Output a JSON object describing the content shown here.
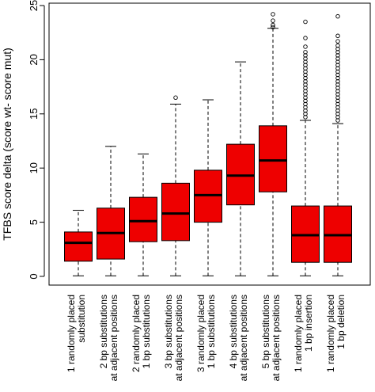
{
  "chart_data": {
    "type": "boxplot",
    "title": "",
    "ylabel": "TFBS score delta (score wt- score mut)",
    "xlabel": "",
    "ylim": [
      0,
      25
    ],
    "yticks": [
      0,
      5,
      10,
      15,
      20,
      25
    ],
    "grid": false,
    "legend": "none",
    "colors": {
      "box_fill": "#ee0000",
      "box_stroke": "#000000",
      "median": "#000000",
      "whisker": "#000000"
    },
    "categories": [
      [
        "1 randomly placed",
        "substitution"
      ],
      [
        "2 bp substitutions",
        "at adjacent positions"
      ],
      [
        "2 randomly placed",
        "1 bp substitutions"
      ],
      [
        "3 bp substitutions",
        "at adjacent positions"
      ],
      [
        "3 randomly placed",
        "1 bp substitutions"
      ],
      [
        "4 bp substitutions",
        "at adjacent positions"
      ],
      [
        "5 bp substitutions",
        "at adjacent positions"
      ],
      [
        "1 randomly placed",
        "1 bp insertion"
      ],
      [
        "1 randomly placed",
        "1 bp deletion"
      ]
    ],
    "boxes": [
      {
        "min": 0.05,
        "q1": 1.4,
        "median": 3.1,
        "q3": 4.1,
        "max": 6.1,
        "outliers": []
      },
      {
        "min": 0.05,
        "q1": 1.6,
        "median": 4.0,
        "q3": 6.3,
        "max": 12.0,
        "outliers": []
      },
      {
        "min": 0.05,
        "q1": 3.2,
        "median": 5.1,
        "q3": 7.3,
        "max": 11.3,
        "outliers": []
      },
      {
        "min": 0.05,
        "q1": 3.3,
        "median": 5.8,
        "q3": 8.6,
        "max": 15.9,
        "outliers": [
          16.5
        ]
      },
      {
        "min": 0.05,
        "q1": 5.0,
        "median": 7.5,
        "q3": 9.8,
        "max": 16.3,
        "outliers": []
      },
      {
        "min": 0.05,
        "q1": 6.6,
        "median": 9.3,
        "q3": 12.2,
        "max": 19.8,
        "outliers": []
      },
      {
        "min": 0.05,
        "q1": 7.8,
        "median": 10.7,
        "q3": 13.9,
        "max": 22.9,
        "outliers": [
          23.0,
          23.2,
          23.6,
          24.2
        ]
      },
      {
        "min": 0.05,
        "q1": 1.3,
        "median": 3.8,
        "q3": 6.5,
        "max": 14.4,
        "outliers": [
          14.7,
          15.0,
          15.3,
          15.6,
          15.9,
          16.2,
          16.5,
          16.8,
          17.1,
          17.4,
          17.7,
          18.0,
          18.3,
          18.6,
          18.9,
          19.2,
          19.5,
          19.8,
          20.1,
          20.4,
          20.7,
          21.2,
          22.0,
          23.5
        ]
      },
      {
        "min": 0.05,
        "q1": 1.3,
        "median": 3.8,
        "q3": 6.5,
        "max": 14.1,
        "outliers": [
          14.4,
          14.7,
          15.0,
          15.3,
          15.6,
          15.9,
          16.2,
          16.5,
          16.8,
          17.1,
          17.4,
          17.7,
          18.0,
          18.3,
          18.6,
          18.9,
          19.2,
          19.5,
          19.8,
          20.1,
          20.4,
          20.7,
          21.0,
          21.3,
          21.7,
          22.2,
          24.0
        ]
      }
    ]
  }
}
